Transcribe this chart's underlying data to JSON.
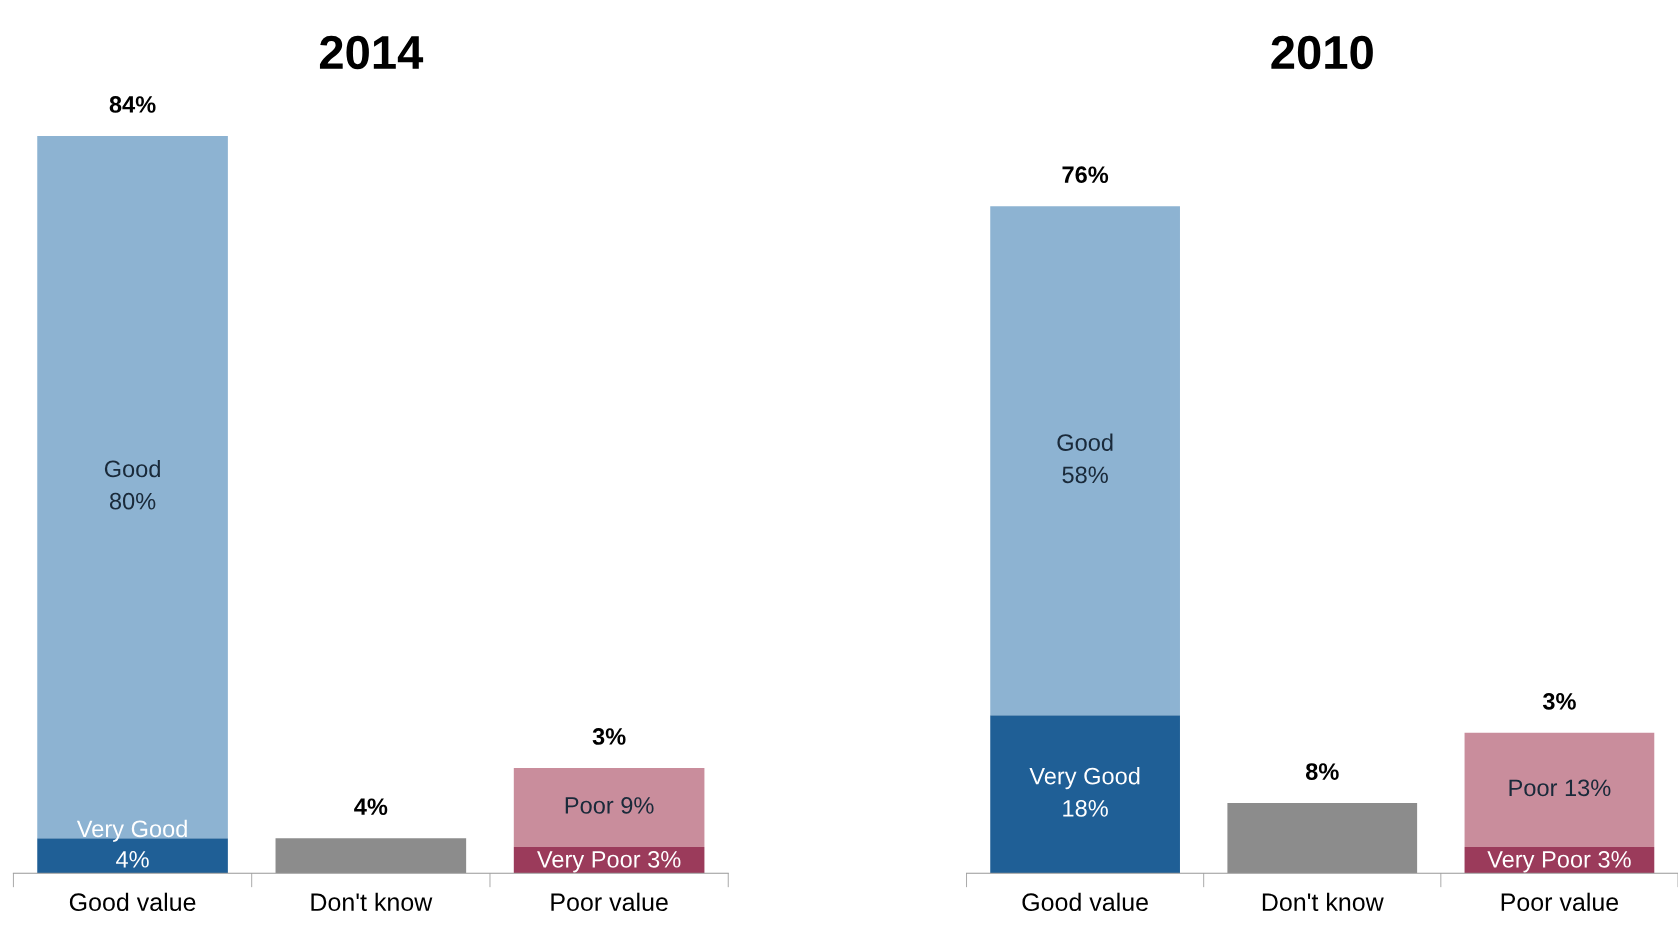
{
  "chart_data": [
    {
      "type": "bar",
      "title": "2014",
      "stacked": true,
      "categories": [
        "Good value",
        "Don't know",
        "Poor value"
      ],
      "series": [
        {
          "color": "#1f5f96",
          "values": [
            4,
            null,
            null
          ],
          "value_labels": [
            "Very Good\n4%",
            null,
            null
          ]
        },
        {
          "color": "#8db3d2",
          "values": [
            80,
            null,
            null
          ],
          "value_labels": [
            "Good\n80%",
            null,
            null
          ]
        },
        {
          "color": "#8c8c8c",
          "values": [
            null,
            4,
            null
          ]
        },
        {
          "color": "#9b3b5b",
          "values": [
            null,
            null,
            3
          ],
          "value_labels": [
            null,
            null,
            "Very Poor 3%"
          ]
        },
        {
          "color": "#c98d9c",
          "values": [
            null,
            null,
            9
          ],
          "value_labels": [
            null,
            null,
            "Poor 9%"
          ]
        }
      ],
      "annotations": [
        {
          "text": "84%",
          "x": "Good value",
          "y": 84
        },
        {
          "text": "4%",
          "x": "Don't know",
          "y": 4
        },
        {
          "text": "3%",
          "x": "Poor value",
          "y": 12
        }
      ],
      "grid": false,
      "legend": false
    },
    {
      "type": "bar",
      "title": "2010",
      "stacked": true,
      "categories": [
        "Good value",
        "Don't know",
        "Poor value"
      ],
      "series": [
        {
          "color": "#1f5f96",
          "values": [
            18,
            null,
            null
          ],
          "value_labels": [
            "Very Good\n18%",
            null,
            null
          ]
        },
        {
          "color": "#8db3d2",
          "values": [
            58,
            null,
            null
          ],
          "value_labels": [
            "Good\n58%",
            null,
            null
          ]
        },
        {
          "color": "#8c8c8c",
          "values": [
            null,
            8,
            null
          ]
        },
        {
          "color": "#9b3b5b",
          "values": [
            null,
            null,
            3
          ],
          "value_labels": [
            null,
            null,
            "Very Poor 3%"
          ]
        },
        {
          "color": "#c98d9c",
          "values": [
            null,
            null,
            13
          ],
          "value_labels": [
            null,
            null,
            "Poor 13%"
          ]
        }
      ],
      "annotations": [
        {
          "text": "76%",
          "x": "Good value",
          "y": 76
        },
        {
          "text": "8%",
          "x": "Don't know",
          "y": 8
        },
        {
          "text": "3%",
          "x": "Poor value",
          "y": 16
        }
      ],
      "grid": false,
      "legend": false
    }
  ]
}
